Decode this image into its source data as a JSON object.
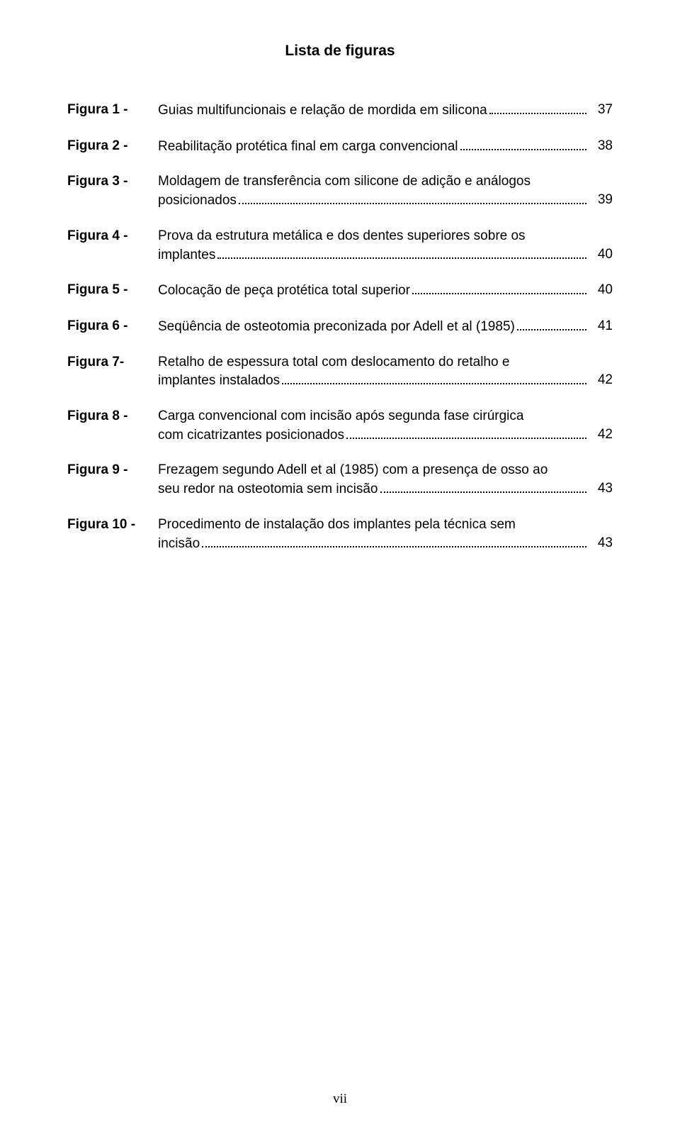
{
  "title": "Lista de figuras",
  "page_number_roman": "vii",
  "entries": [
    {
      "label": "Figura 1 -",
      "lines": [
        "Guias multifuncionais e relação de mordida em silicona"
      ],
      "page": "37"
    },
    {
      "label": "Figura 2 -",
      "lines": [
        "Reabilitação protética final em carga convencional"
      ],
      "page": "38"
    },
    {
      "label": "Figura 3 -",
      "lines": [
        "Moldagem de transferência com silicone de adição e análogos",
        "posicionados"
      ],
      "page": "39"
    },
    {
      "label": "Figura 4 -",
      "lines": [
        "Prova da estrutura metálica e dos dentes superiores sobre os",
        "implantes"
      ],
      "page": "40"
    },
    {
      "label": "Figura 5 -",
      "lines": [
        "Colocação de peça protética total superior"
      ],
      "page": "40"
    },
    {
      "label": "Figura 6 -",
      "lines": [
        "Seqüência de osteotomia preconizada por Adell et al (1985)"
      ],
      "page": "41"
    },
    {
      "label": "Figura 7-",
      "lines": [
        "Retalho de espessura total com deslocamento do retalho e",
        "implantes instalados"
      ],
      "page": "42"
    },
    {
      "label": "Figura 8 -",
      "lines": [
        "Carga convencional com incisão após segunda fase cirúrgica",
        "com cicatrizantes posicionados"
      ],
      "page": "42"
    },
    {
      "label": "Figura 9 -",
      "lines": [
        "Frezagem segundo Adell et al (1985) com a presença de osso ao",
        "seu redor na osteotomia sem incisão"
      ],
      "page": "43"
    },
    {
      "label": "Figura 10 -",
      "lines": [
        "Procedimento de instalação dos implantes pela técnica sem",
        "incisão"
      ],
      "page": "43"
    }
  ]
}
